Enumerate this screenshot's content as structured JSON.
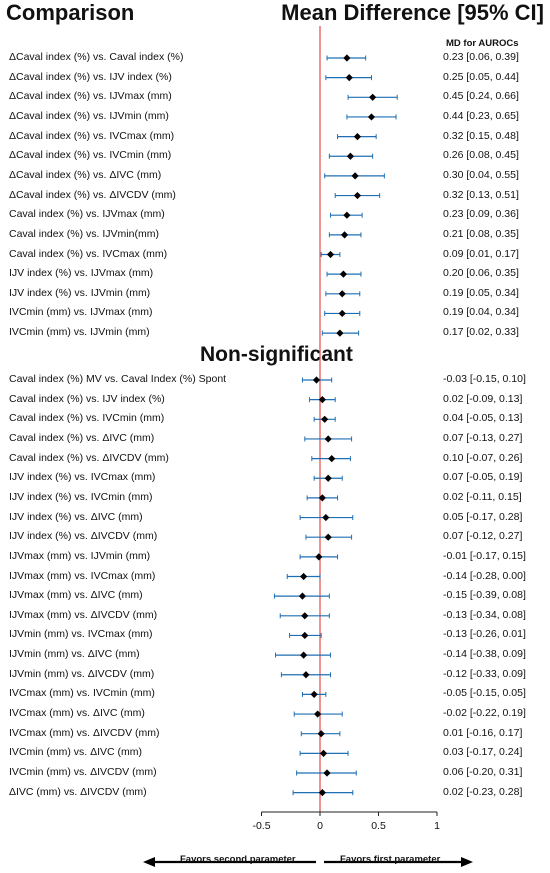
{
  "header": {
    "left": "Comparison",
    "right": "Mean Difference [95% CI]",
    "md_column": "MD for AUROCs",
    "nonsig_title": "Non-significant"
  },
  "footer": {
    "favors_left": "Favors second parameter",
    "favors_right": "Favors first parameter"
  },
  "chart_data": {
    "type": "forest",
    "title": "Mean Difference [95% CI]",
    "xlim": [
      -0.5,
      1
    ],
    "x_ticks": [
      "-0.5",
      "0",
      "0.5",
      "1"
    ],
    "reference_line": 0,
    "groups": [
      {
        "name": "",
        "rows": [
          {
            "label": "ΔCaval index (%) vs. Caval index (%)",
            "md": 0.23,
            "lo": 0.06,
            "hi": 0.39,
            "text": "0.23 [0.06, 0.39]"
          },
          {
            "label": "ΔCaval index (%) vs. IJV index (%)",
            "md": 0.25,
            "lo": 0.05,
            "hi": 0.44,
            "text": "0.25 [0.05, 0.44]"
          },
          {
            "label": "ΔCaval index (%) vs. IJVmax (mm)",
            "md": 0.45,
            "lo": 0.24,
            "hi": 0.66,
            "text": "0.45 [0.24, 0.66]"
          },
          {
            "label": "ΔCaval index (%) vs. IJVmin (mm)",
            "md": 0.44,
            "lo": 0.23,
            "hi": 0.65,
            "text": "0.44 [0.23, 0.65]"
          },
          {
            "label": "ΔCaval index (%) vs. IVCmax (mm)",
            "md": 0.32,
            "lo": 0.15,
            "hi": 0.48,
            "text": "0.32 [0.15, 0.48]"
          },
          {
            "label": "ΔCaval index (%) vs. IVCmin (mm)",
            "md": 0.26,
            "lo": 0.08,
            "hi": 0.45,
            "text": "0.26 [0.08, 0.45]"
          },
          {
            "label": "ΔCaval index (%) vs. ΔIVC (mm)",
            "md": 0.3,
            "lo": 0.04,
            "hi": 0.55,
            "text": "0.30 [0.04, 0.55]"
          },
          {
            "label": "ΔCaval index (%) vs. ΔIVCDV (mm)",
            "md": 0.32,
            "lo": 0.13,
            "hi": 0.51,
            "text": "0.32 [0.13, 0.51]"
          },
          {
            "label": "Caval index (%) vs. IJVmax (mm)",
            "md": 0.23,
            "lo": 0.09,
            "hi": 0.36,
            "text": "0.23 [0.09, 0.36]"
          },
          {
            "label": "Caval index (%) vs. IJVmin(mm)",
            "md": 0.21,
            "lo": 0.08,
            "hi": 0.35,
            "text": "0.21 [0.08, 0.35]"
          },
          {
            "label": "Caval index (%) vs. IVCmax (mm)",
            "md": 0.09,
            "lo": 0.01,
            "hi": 0.17,
            "text": "0.09 [0.01, 0.17]"
          },
          {
            "label": "IJV index (%) vs. IJVmax (mm)",
            "md": 0.2,
            "lo": 0.06,
            "hi": 0.35,
            "text": "0.20 [0.06, 0.35]"
          },
          {
            "label": "IJV index (%) vs. IJVmin (mm)",
            "md": 0.19,
            "lo": 0.05,
            "hi": 0.34,
            "text": "0.19 [0.05, 0.34]"
          },
          {
            "label": "IVCmin (mm) vs. IJVmax (mm)",
            "md": 0.19,
            "lo": 0.04,
            "hi": 0.34,
            "text": "0.19 [0.04, 0.34]"
          },
          {
            "label": "IVCmin (mm) vs. IJVmin (mm)",
            "md": 0.17,
            "lo": 0.02,
            "hi": 0.33,
            "text": "0.17 [0.02, 0.33]"
          }
        ]
      },
      {
        "name": "Non-significant",
        "rows": [
          {
            "label": "Caval index (%) MV vs. Caval Index (%) Spont",
            "md": -0.03,
            "lo": -0.15,
            "hi": 0.1,
            "text": "-0.03 [-0.15, 0.10]"
          },
          {
            "label": "Caval index (%) vs. IJV index (%)",
            "md": 0.02,
            "lo": -0.09,
            "hi": 0.13,
            "text": "0.02 [-0.09, 0.13]"
          },
          {
            "label": "Caval index (%) vs. IVCmin (mm)",
            "md": 0.04,
            "lo": -0.05,
            "hi": 0.13,
            "text": "0.04 [-0.05, 0.13]"
          },
          {
            "label": "Caval index (%) vs. ΔIVC (mm)",
            "md": 0.07,
            "lo": -0.13,
            "hi": 0.27,
            "text": "0.07 [-0.13, 0.27]"
          },
          {
            "label": "Caval index (%) vs. ΔIVCDV (mm)",
            "md": 0.1,
            "lo": -0.07,
            "hi": 0.26,
            "text": "0.10 [-0.07, 0.26]"
          },
          {
            "label": "IJV index (%) vs. IVCmax (mm)",
            "md": 0.07,
            "lo": -0.05,
            "hi": 0.19,
            "text": "0.07 [-0.05, 0.19]"
          },
          {
            "label": "IJV index (%) vs. IVCmin (mm)",
            "md": 0.02,
            "lo": -0.11,
            "hi": 0.15,
            "text": "0.02 [-0.11, 0.15]"
          },
          {
            "label": "IJV index (%) vs. ΔIVC (mm)",
            "md": 0.05,
            "lo": -0.17,
            "hi": 0.28,
            "text": "0.05 [-0.17, 0.28]"
          },
          {
            "label": "IJV index (%) vs. ΔIVCDV (mm)",
            "md": 0.07,
            "lo": -0.12,
            "hi": 0.27,
            "text": "0.07 [-0.12, 0.27]"
          },
          {
            "label": "IJVmax (mm) vs. IJVmin (mm)",
            "md": -0.01,
            "lo": -0.17,
            "hi": 0.15,
            "text": "-0.01 [-0.17, 0.15]"
          },
          {
            "label": "IJVmax (mm) vs. IVCmax (mm)",
            "md": -0.14,
            "lo": -0.28,
            "hi": 0.0,
            "text": "-0.14 [-0.28, 0.00]"
          },
          {
            "label": "IJVmax (mm) vs. ΔIVC (mm)",
            "md": -0.15,
            "lo": -0.39,
            "hi": 0.08,
            "text": "-0.15 [-0.39, 0.08]"
          },
          {
            "label": "IJVmax (mm) vs. ΔIVCDV (mm)",
            "md": -0.13,
            "lo": -0.34,
            "hi": 0.08,
            "text": "-0.13 [-0.34, 0.08]"
          },
          {
            "label": "IJVmin (mm) vs. IVCmax (mm)",
            "md": -0.13,
            "lo": -0.26,
            "hi": 0.01,
            "text": "-0.13 [-0.26, 0.01]"
          },
          {
            "label": "IJVmin (mm) vs. ΔIVC (mm)",
            "md": -0.14,
            "lo": -0.38,
            "hi": 0.09,
            "text": "-0.14 [-0.38, 0.09]"
          },
          {
            "label": "IJVmin (mm) vs. ΔIVCDV (mm)",
            "md": -0.12,
            "lo": -0.33,
            "hi": 0.09,
            "text": "-0.12 [-0.33, 0.09]"
          },
          {
            "label": "IVCmax (mm) vs. IVCmin (mm)",
            "md": -0.05,
            "lo": -0.15,
            "hi": 0.05,
            "text": "-0.05 [-0.15, 0.05]"
          },
          {
            "label": "IVCmax (mm) vs. ΔIVC (mm)",
            "md": -0.02,
            "lo": -0.22,
            "hi": 0.19,
            "text": "-0.02 [-0.22, 0.19]"
          },
          {
            "label": "IVCmax (mm) vs. ΔIVCDV (mm)",
            "md": 0.01,
            "lo": -0.16,
            "hi": 0.17,
            "text": "0.01 [-0.16, 0.17]"
          },
          {
            "label": "IVCmin (mm) vs. ΔIVC (mm)",
            "md": 0.03,
            "lo": -0.17,
            "hi": 0.24,
            "text": "0.03 [-0.17, 0.24]"
          },
          {
            "label": "IVCmin (mm) vs. ΔIVCDV (mm)",
            "md": 0.06,
            "lo": -0.2,
            "hi": 0.31,
            "text": "0.06 [-0.20, 0.31]"
          },
          {
            "label": "ΔIVC (mm) vs. ΔIVCDV (mm)",
            "md": 0.02,
            "lo": -0.23,
            "hi": 0.28,
            "text": "0.02 [-0.23, 0.28]"
          }
        ]
      }
    ],
    "colors": {
      "ci": "#1f6fb4",
      "point": "#000000",
      "zero_line": "#e34b4b"
    }
  }
}
